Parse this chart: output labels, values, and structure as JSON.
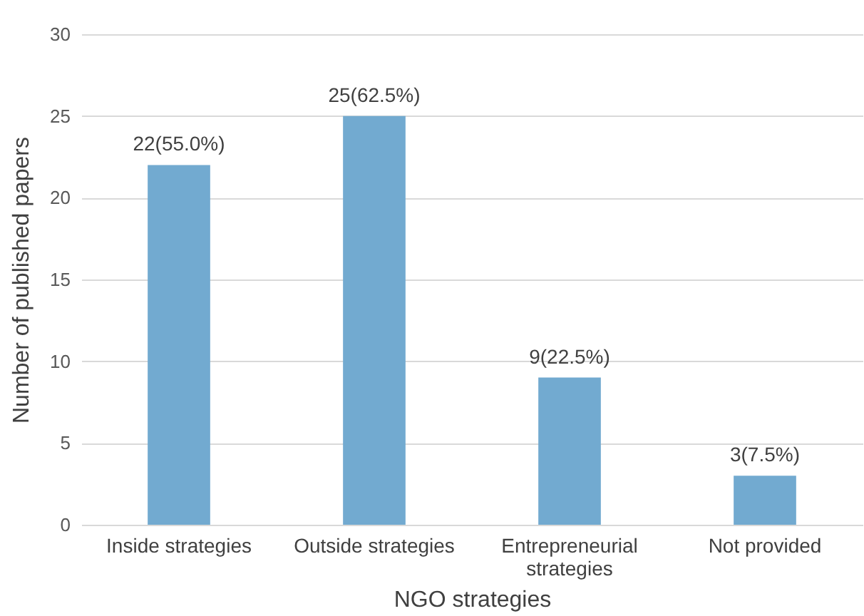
{
  "chart_data": {
    "type": "bar",
    "xlabel": "NGO strategies",
    "ylabel": "Number of published papers",
    "categories": [
      "Inside strategies",
      "Outside strategies",
      "Entrepreneurial strategies",
      "Not provided"
    ],
    "values": [
      22,
      25,
      9,
      3
    ],
    "value_labels": [
      "22(55.0%)",
      "25(62.5%)",
      "9(22.5%)",
      "3(7.5%)"
    ],
    "color": "#72aad0",
    "ylim": [
      0,
      30
    ],
    "yticks": [
      0,
      5,
      10,
      15,
      20,
      25,
      30
    ],
    "grid": "y"
  }
}
